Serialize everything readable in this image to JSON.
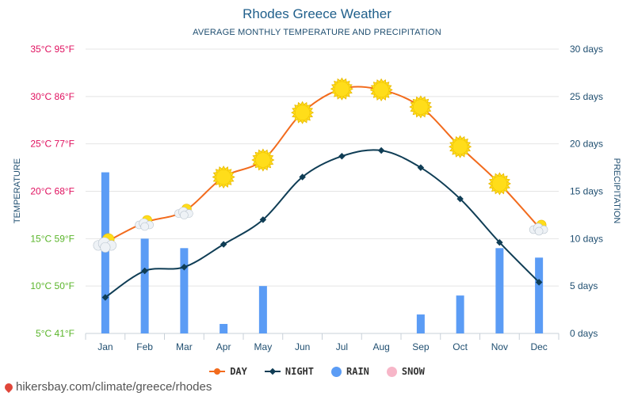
{
  "page": {
    "title": "Rhodes Greece Weather",
    "subtitle": "AVERAGE MONTHLY TEMPERATURE AND PRECIPITATION",
    "footer": "hikersbay.com/climate/greece/rhodes"
  },
  "colors": {
    "day": "#f26b1d",
    "night": "#0f3d55",
    "rain": "#5b9cf5",
    "snow": "#f7b6c8",
    "hot_label": "#e0115f",
    "mild_label": "#5ab52a",
    "right_axis": "#1f4e70",
    "sun": "#ffdd1a"
  },
  "legend": [
    {
      "label": "DAY",
      "key": "day",
      "marker": "line-circle"
    },
    {
      "label": "NIGHT",
      "key": "night",
      "marker": "line-diamond"
    },
    {
      "label": "RAIN",
      "key": "rain",
      "marker": "dot"
    },
    {
      "label": "SNOW",
      "key": "snow",
      "marker": "dot"
    }
  ],
  "chart_data": {
    "type": "line",
    "categories": [
      "Jan",
      "Feb",
      "Mar",
      "Apr",
      "May",
      "Jun",
      "Jul",
      "Aug",
      "Sep",
      "Oct",
      "Nov",
      "Dec"
    ],
    "series": [
      {
        "name": "DAY",
        "axis": "left",
        "values": [
          14.6,
          16.7,
          17.9,
          21.5,
          23.3,
          28.3,
          30.8,
          30.7,
          28.9,
          24.7,
          20.8,
          16.2
        ]
      },
      {
        "name": "NIGHT",
        "axis": "left",
        "values": [
          8.8,
          11.6,
          12.0,
          14.4,
          17.0,
          21.5,
          23.7,
          24.3,
          22.5,
          19.2,
          14.6,
          10.4
        ]
      },
      {
        "name": "RAIN",
        "type": "bar",
        "axis": "right",
        "values": [
          17,
          10,
          9,
          1,
          5,
          0,
          0,
          0,
          2,
          4,
          9,
          8
        ]
      },
      {
        "name": "SNOW",
        "type": "bar",
        "axis": "right",
        "values": [
          0,
          0,
          0,
          0,
          0,
          0,
          0,
          0,
          0,
          0,
          0,
          0
        ]
      }
    ],
    "day_icons": [
      "cloud-sun-icon",
      "cloud-sun-icon",
      "cloud-sun-icon",
      "sun-icon",
      "sun-icon",
      "sun-icon",
      "sun-icon",
      "sun-icon",
      "sun-icon",
      "sun-icon",
      "sun-icon",
      "cloud-sun-icon"
    ],
    "left_axis": {
      "label": "TEMPERATURE",
      "ticks": [
        {
          "value": 5,
          "label": "5°C 41°F"
        },
        {
          "value": 10,
          "label": "10°C 50°F"
        },
        {
          "value": 15,
          "label": "15°C 59°F"
        },
        {
          "value": 20,
          "label": "20°C 68°F"
        },
        {
          "value": 25,
          "label": "25°C 77°F"
        },
        {
          "value": 30,
          "label": "30°C 86°F"
        },
        {
          "value": 35,
          "label": "35°C 95°F"
        }
      ],
      "range": [
        5,
        35
      ]
    },
    "right_axis": {
      "label": "PRECIPITATION",
      "ticks": [
        {
          "value": 0,
          "label": "0 days"
        },
        {
          "value": 5,
          "label": "5 days"
        },
        {
          "value": 10,
          "label": "10 days"
        },
        {
          "value": 15,
          "label": "15 days"
        },
        {
          "value": 20,
          "label": "20 days"
        },
        {
          "value": 25,
          "label": "25 days"
        },
        {
          "value": 30,
          "label": "30 days"
        }
      ],
      "range": [
        0,
        30
      ]
    },
    "grid": true,
    "legend_position": "bottom"
  }
}
